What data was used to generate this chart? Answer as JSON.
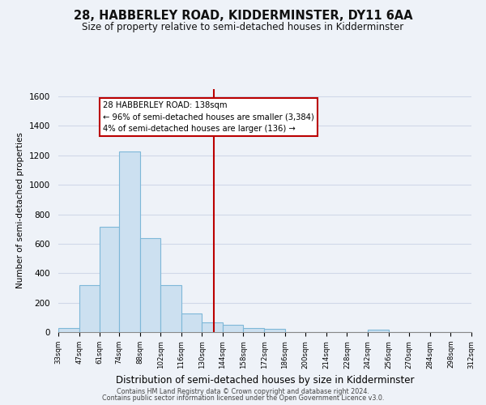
{
  "title": "28, HABBERLEY ROAD, KIDDERMINSTER, DY11 6AA",
  "subtitle": "Size of property relative to semi-detached houses in Kidderminster",
  "xlabel": "Distribution of semi-detached houses by size in Kidderminster",
  "ylabel": "Number of semi-detached properties",
  "bar_edges": [
    33,
    47,
    61,
    74,
    88,
    102,
    116,
    130,
    144,
    158,
    172,
    186,
    200,
    214,
    228,
    242,
    256,
    270,
    284,
    298,
    312
  ],
  "bar_heights": [
    30,
    320,
    715,
    1225,
    640,
    320,
    125,
    65,
    50,
    30,
    20,
    0,
    0,
    0,
    0,
    15,
    0,
    0,
    0,
    0
  ],
  "bar_color": "#cce0f0",
  "bar_edge_color": "#7eb8d8",
  "vline_x": 138,
  "vline_color": "#bb0000",
  "annotation_title": "28 HABBERLEY ROAD: 138sqm",
  "annotation_line1": "← 96% of semi-detached houses are smaller (3,384)",
  "annotation_line2": "4% of semi-detached houses are larger (136) →",
  "ylim": [
    0,
    1650
  ],
  "yticks": [
    0,
    200,
    400,
    600,
    800,
    1000,
    1200,
    1400,
    1600
  ],
  "tick_labels": [
    "33sqm",
    "47sqm",
    "61sqm",
    "74sqm",
    "88sqm",
    "102sqm",
    "116sqm",
    "130sqm",
    "144sqm",
    "158sqm",
    "172sqm",
    "186sqm",
    "200sqm",
    "214sqm",
    "228sqm",
    "242sqm",
    "256sqm",
    "270sqm",
    "284sqm",
    "298sqm",
    "312sqm"
  ],
  "footer_line1": "Contains HM Land Registry data © Crown copyright and database right 2024.",
  "footer_line2": "Contains public sector information licensed under the Open Government Licence v3.0.",
  "bg_color": "#eef2f8",
  "plot_bg_color": "#eef2f8",
  "annotation_box_color": "#ffffff",
  "annotation_box_edge_color": "#bb0000",
  "grid_color": "#d0d8e8",
  "title_fontsize": 10.5,
  "subtitle_fontsize": 8.5
}
